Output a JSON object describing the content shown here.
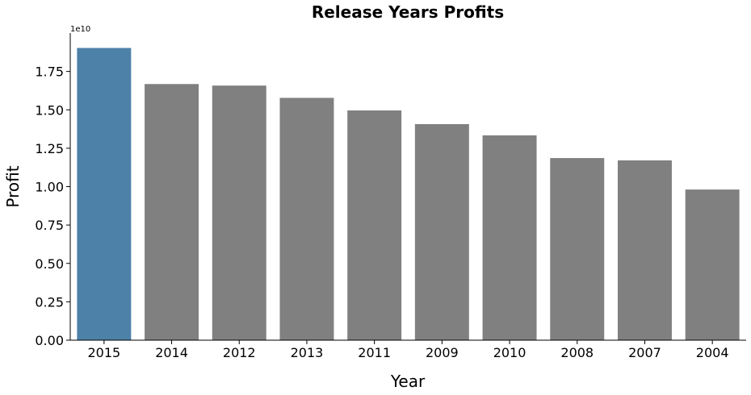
{
  "chart_data": {
    "type": "bar",
    "title": "Release Years Profits",
    "xlabel": "Year",
    "ylabel": "Profit",
    "y_scale_note": "1e10",
    "categories": [
      "2015",
      "2014",
      "2012",
      "2013",
      "2011",
      "2009",
      "2010",
      "2008",
      "2007",
      "2004"
    ],
    "values": [
      19.03,
      16.68,
      16.58,
      15.78,
      14.96,
      14.07,
      13.34,
      11.86,
      11.71,
      9.81
    ],
    "value_unit_multiplier": 1000000000,
    "ylim": [
      0,
      20
    ],
    "yticks": [
      0,
      2.5,
      5,
      7.5,
      10,
      12.5,
      15,
      17.5
    ],
    "ytick_labels": [
      "0.00",
      "0.25",
      "0.50",
      "0.75",
      "1.00",
      "1.25",
      "1.50",
      "1.75"
    ],
    "grid": false,
    "colors": {
      "highlight": "#4e81a8",
      "default": "#808080"
    },
    "highlight_index": 0
  }
}
